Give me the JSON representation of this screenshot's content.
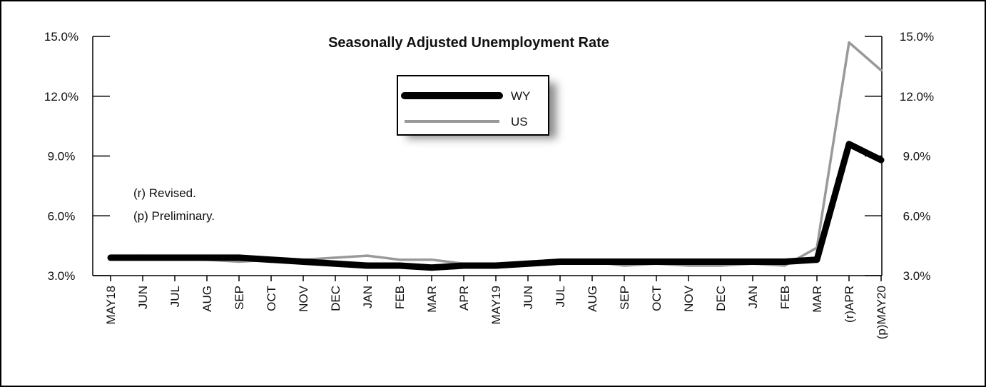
{
  "chart_data": {
    "type": "line",
    "title": "Seasonally Adjusted Unemployment Rate",
    "xlabel": "",
    "ylabel": "",
    "categories": [
      "MAY18",
      "JUN",
      "JUL",
      "AUG",
      "SEP",
      "OCT",
      "NOV",
      "DEC",
      "JAN",
      "FEB",
      "MAR",
      "APR",
      "MAY19",
      "JUN",
      "JUL",
      "AUG",
      "SEP",
      "OCT",
      "NOV",
      "DEC",
      "JAN",
      "FEB",
      "MAR",
      "(r)APR",
      "(p)MAY20"
    ],
    "series": [
      {
        "name": "WY",
        "color": "#000000",
        "values": [
          3.9,
          3.9,
          3.9,
          3.9,
          3.9,
          3.8,
          3.7,
          3.6,
          3.5,
          3.5,
          3.4,
          3.5,
          3.5,
          3.6,
          3.7,
          3.7,
          3.7,
          3.7,
          3.7,
          3.7,
          3.7,
          3.7,
          3.8,
          9.6,
          8.8
        ]
      },
      {
        "name": "US",
        "color": "#999999",
        "values": [
          3.8,
          4.0,
          3.9,
          3.8,
          3.7,
          3.8,
          3.8,
          3.9,
          4.0,
          3.8,
          3.8,
          3.6,
          3.6,
          3.6,
          3.7,
          3.7,
          3.5,
          3.6,
          3.5,
          3.5,
          3.6,
          3.5,
          4.4,
          14.7,
          13.3
        ]
      }
    ],
    "ylim": [
      3.0,
      15.0
    ],
    "y_ticks": [
      "3.0%",
      "6.0%",
      "9.0%",
      "12.0%",
      "15.0%"
    ],
    "y_tick_values": [
      3.0,
      6.0,
      9.0,
      12.0,
      15.0
    ],
    "grid": false,
    "legend_position": "top-center",
    "notes": [
      "(r) Revised.",
      "(p) Preliminary."
    ]
  }
}
